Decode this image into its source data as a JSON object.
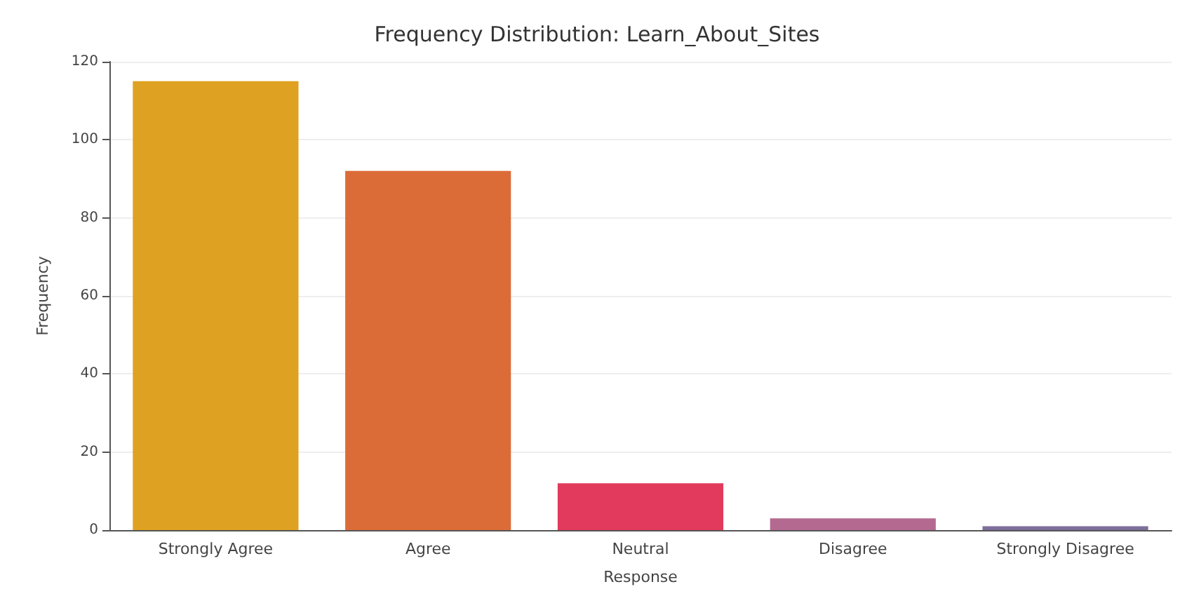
{
  "chart_data": {
    "type": "bar",
    "title": "Frequency Distribution: Learn_About_Sites",
    "xlabel": "Response",
    "ylabel": "Frequency",
    "categories": [
      "Strongly Agree",
      "Agree",
      "Neutral",
      "Disagree",
      "Strongly Disagree"
    ],
    "values": [
      115,
      92,
      12,
      3,
      1
    ],
    "colors": [
      "#dfa122",
      "#db6c38",
      "#e23a5c",
      "#b46a90",
      "#7d6f9c"
    ],
    "ylim": [
      0,
      120
    ],
    "yticks": [
      0,
      20,
      40,
      60,
      80,
      100,
      120
    ],
    "grid": "y"
  }
}
